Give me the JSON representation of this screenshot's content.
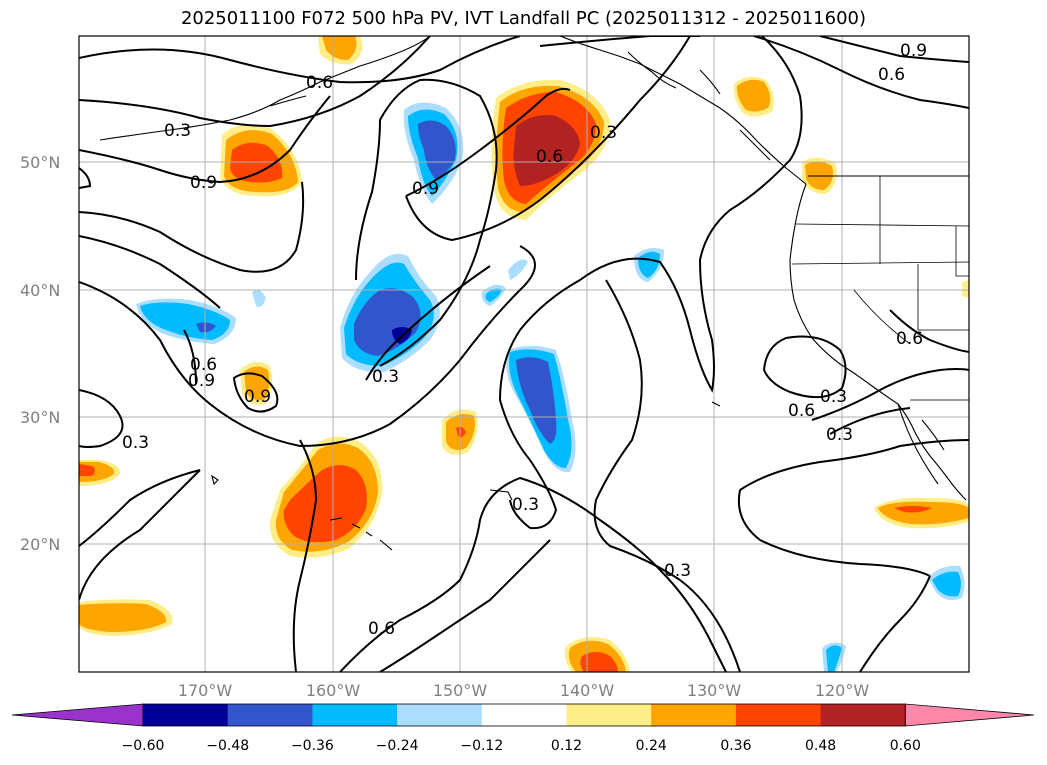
{
  "title": "2025011100 F072 500 hPa PV, IVT Landfall PC (2025011312 - 2025011600)",
  "lat_ticks": [
    "50°N",
    "40°N",
    "30°N",
    "20°N"
  ],
  "lon_ticks": [
    "170°W",
    "160°W",
    "150°W",
    "140°W",
    "130°W",
    "120°W"
  ],
  "colorbar": {
    "levels": [
      "−0.60",
      "−0.48",
      "−0.36",
      "−0.24",
      "−0.12",
      "0.12",
      "0.24",
      "0.36",
      "0.48",
      "0.60"
    ],
    "colors": [
      "#9933cc",
      "#000099",
      "#3355cc",
      "#00bbff",
      "#aaddff",
      "#ffffff",
      "#ffee88",
      "#ffa500",
      "#ff4400",
      "#b22222",
      "#ff88aa"
    ]
  },
  "contour_labels": [
    "0.3",
    "0.6",
    "0.9",
    "0.9",
    "0.3",
    "0.6",
    "0.9",
    "0.9",
    "0.3",
    "0.6",
    "0.9",
    "0.6",
    "0.6",
    "0.3",
    "0.3",
    "0.6",
    "0.3",
    "0.3",
    "0.6",
    "0.3"
  ],
  "colors": {
    "gridline": "#b0b0b0",
    "coastline": "#000000",
    "contour": "#000000"
  }
}
